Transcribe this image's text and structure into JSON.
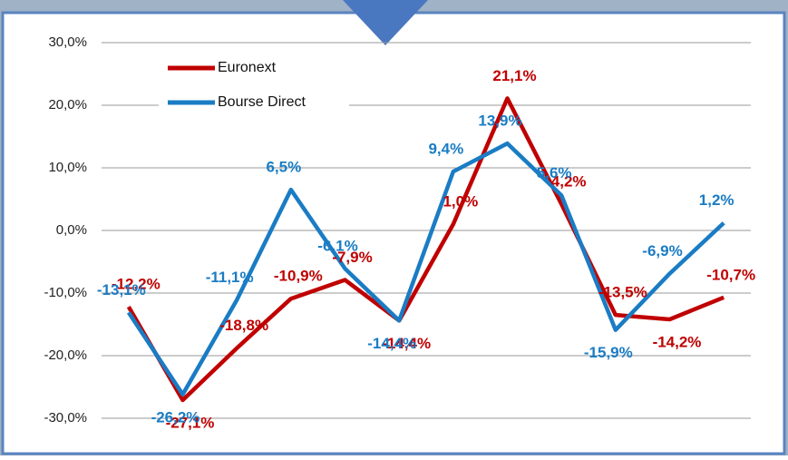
{
  "chart_data": {
    "type": "line",
    "categories": [
      null,
      null,
      null,
      null,
      null,
      null,
      null,
      null,
      null,
      null,
      null,
      null
    ],
    "series": [
      {
        "name": "Euronext",
        "color": "#c00000",
        "values": [
          -12.2,
          -27.1,
          -18.8,
          -10.9,
          -7.9,
          -14.4,
          1.0,
          21.1,
          4.2,
          -13.5,
          -14.2,
          -10.7
        ],
        "value_labels": [
          "-12,2%",
          "-27,1%",
          "-18,8%",
          "-10,9%",
          "-7,9%",
          "-14,4%",
          "1,0%",
          "21,1%",
          "4,2%",
          "-13,5%",
          "-14,2%",
          "-10,7%"
        ]
      },
      {
        "name": "Bourse Direct",
        "color": "#1a7cc4",
        "values": [
          -13.1,
          -26.2,
          -11.1,
          6.5,
          -6.1,
          -14.4,
          9.4,
          13.9,
          5.6,
          -15.9,
          -6.9,
          1.2
        ],
        "value_labels": [
          "-13,1%",
          "-26,2%",
          "-11,1%",
          "6,5%",
          "-6,1%",
          "-14,4%",
          "9,4%",
          "13,9%",
          "5,6%",
          "-15,9%",
          "-6,9%",
          "1,2%"
        ]
      }
    ],
    "ylim": [
      -30,
      30
    ],
    "yticks": [
      {
        "value": -30,
        "label": "-30,0%"
      },
      {
        "value": -20,
        "label": "-20,0%"
      },
      {
        "value": -10,
        "label": "-10,0%"
      },
      {
        "value": 0,
        "label": "0,0%"
      },
      {
        "value": 10,
        "label": "10,0%"
      },
      {
        "value": 20,
        "label": "20,0%"
      },
      {
        "value": 30,
        "label": "30,0%"
      }
    ],
    "grid": true,
    "legend": "top-left"
  }
}
